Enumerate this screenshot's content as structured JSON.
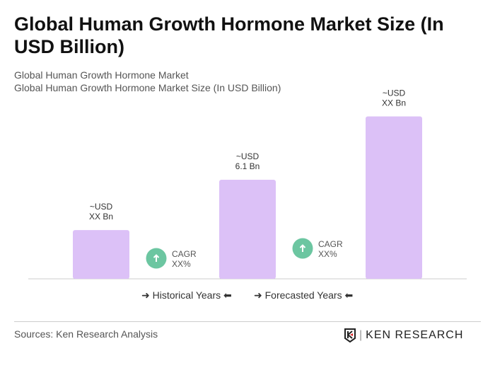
{
  "title": "Global Human Growth Hormone Market Size (In USD Billion)",
  "subtitle1": "Global Human Growth Hormone Market",
  "subtitle2": "Global Human Growth Hormone Market Size (In USD Billion)",
  "chart_data": {
    "type": "bar",
    "categories": [
      "",
      "",
      ""
    ],
    "values": [
      3.0,
      6.1,
      10.0
    ],
    "data_labels": [
      [
        "~USD",
        "XX Bn"
      ],
      [
        "~USD",
        "6.1 Bn"
      ],
      [
        "~USD",
        "XX Bn"
      ]
    ],
    "cagr": [
      [
        "CAGR",
        "XX%"
      ],
      [
        "CAGR",
        "XX%"
      ]
    ],
    "bar_color": "#dcc1f7",
    "cagr_color": "#6cc6a1",
    "legend": [
      "Historical Years",
      "Forecasted Years"
    ]
  },
  "legend": {
    "historical": "Historical Years",
    "forecasted": "Forecasted Years"
  },
  "sources": "Sources: Ken Research Analysis",
  "logo_text": "KEN RESEARCH"
}
